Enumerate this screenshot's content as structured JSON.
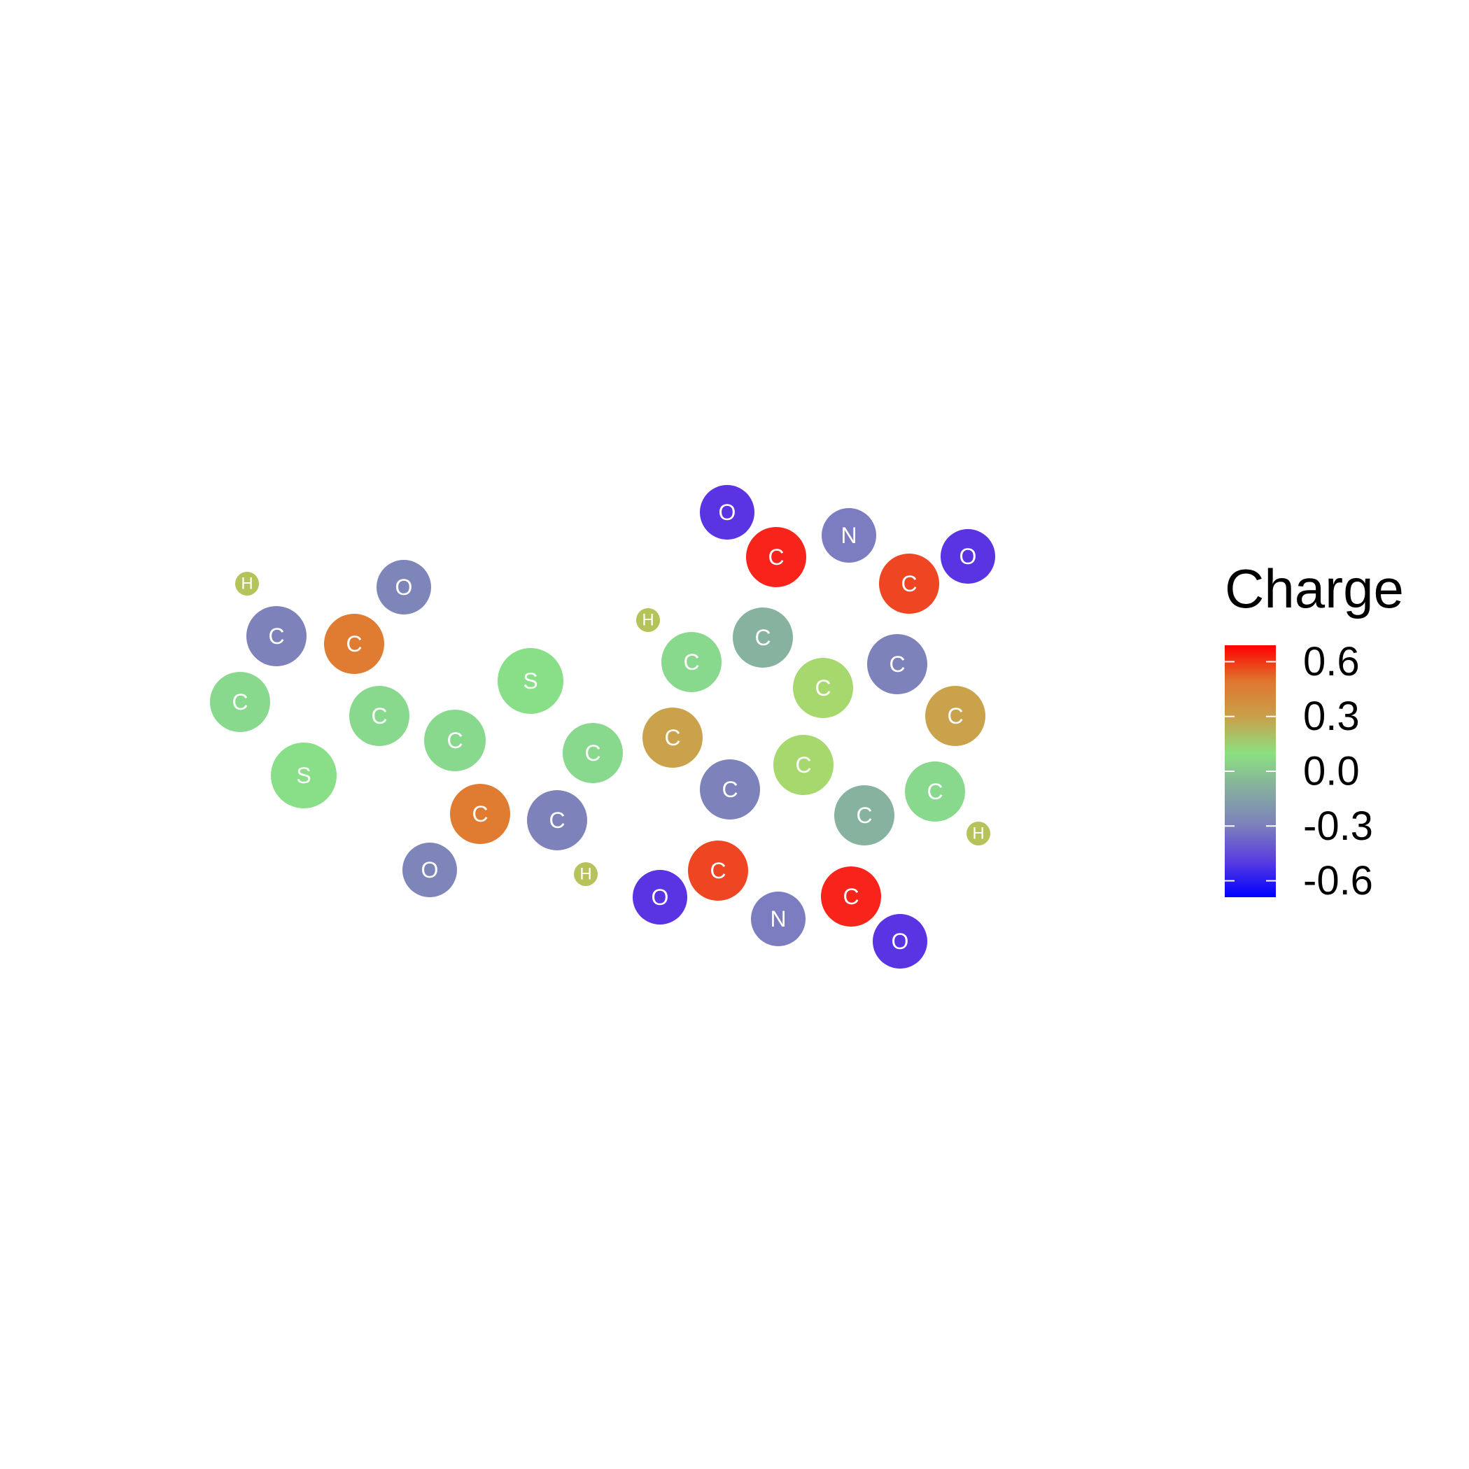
{
  "legend": {
    "title": "Charge",
    "ticks": [
      "0.6",
      "0.3",
      "0.0",
      "-0.3",
      "-0.6"
    ],
    "tick_values": [
      0.6,
      0.3,
      0.0,
      -0.3,
      -0.6
    ],
    "range": [
      -0.69,
      0.69
    ]
  },
  "colors": {
    "scale": [
      "#0000ff",
      "#5a3ce0",
      "#7c80bc",
      "#86ad9f",
      "#8be080",
      "#c9a04a",
      "#e0762e",
      "#ff0000"
    ]
  },
  "atoms": [
    {
      "el": "H",
      "color": "#b6c25a"
    },
    {
      "el": "O",
      "color": "#7d85b9"
    },
    {
      "el": "C",
      "color": "#7d82bb"
    },
    {
      "el": "C",
      "color": "#e07b32"
    },
    {
      "el": "C",
      "color": "#88d98d"
    },
    {
      "el": "C",
      "color": "#88d98d"
    },
    {
      "el": "S",
      "color": "#88df88"
    },
    {
      "el": "C",
      "color": "#88d98d"
    },
    {
      "el": "S",
      "color": "#88df88"
    },
    {
      "el": "C",
      "color": "#e07b32"
    },
    {
      "el": "C",
      "color": "#7d82bb"
    },
    {
      "el": "O",
      "color": "#7d85b9"
    },
    {
      "el": "H",
      "color": "#b6c25a"
    },
    {
      "el": "C",
      "color": "#88d98d"
    },
    {
      "el": "C",
      "color": "#c9a24b"
    },
    {
      "el": "H",
      "color": "#b6c25a"
    },
    {
      "el": "C",
      "color": "#88d98d"
    },
    {
      "el": "C",
      "color": "#86b29f"
    },
    {
      "el": "O",
      "color": "#5a34e2"
    },
    {
      "el": "C",
      "color": "#f8231a"
    },
    {
      "el": "N",
      "color": "#7c7cc0"
    },
    {
      "el": "C",
      "color": "#ee4523"
    },
    {
      "el": "O",
      "color": "#5a34e2"
    },
    {
      "el": "C",
      "color": "#a6d86e"
    },
    {
      "el": "C",
      "color": "#7d82bb"
    },
    {
      "el": "C",
      "color": "#c9a24b"
    },
    {
      "el": "C",
      "color": "#7d82bb"
    },
    {
      "el": "C",
      "color": "#a6d86e"
    },
    {
      "el": "C",
      "color": "#86b29f"
    },
    {
      "el": "C",
      "color": "#88d98d"
    },
    {
      "el": "H",
      "color": "#b6c25a"
    },
    {
      "el": "O",
      "color": "#5a34e2"
    },
    {
      "el": "C",
      "color": "#ee4523"
    },
    {
      "el": "N",
      "color": "#7c7cc0"
    },
    {
      "el": "C",
      "color": "#f8231a"
    },
    {
      "el": "O",
      "color": "#5a34e2"
    }
  ]
}
